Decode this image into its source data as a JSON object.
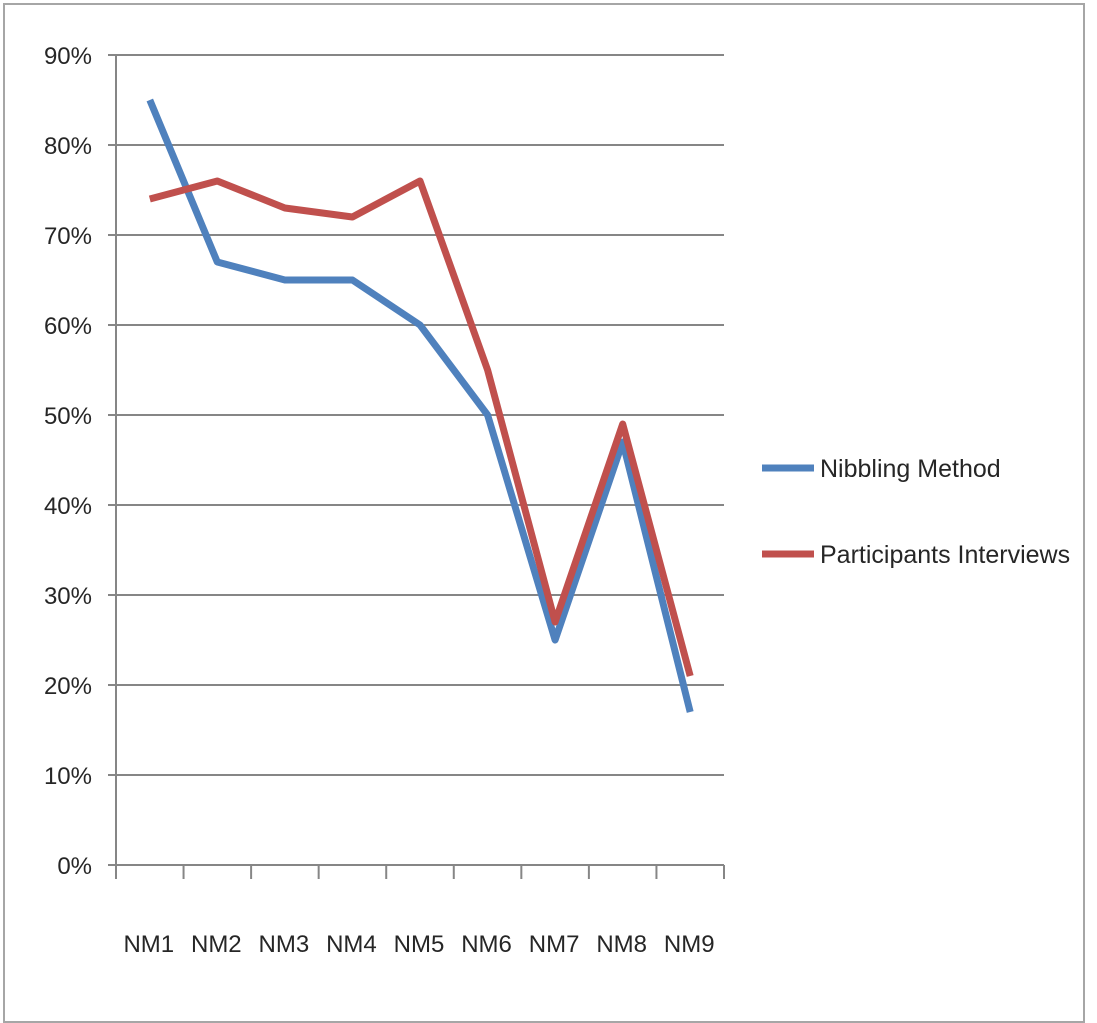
{
  "chart_data": {
    "type": "line",
    "categories": [
      "NM1",
      "NM2",
      "NM3",
      "NM4",
      "NM5",
      "NM6",
      "NM7",
      "NM8",
      "NM9"
    ],
    "y_ticks": [
      "0%",
      "10%",
      "20%",
      "30%",
      "40%",
      "50%",
      "60%",
      "70%",
      "80%",
      "90%"
    ],
    "ylim": [
      0,
      90
    ],
    "y_unit": "%",
    "grid": true,
    "legend_position": "right",
    "series": [
      {
        "name": "Nibbling Method",
        "color": "#4f81bd",
        "values": [
          85,
          67,
          65,
          65,
          60,
          50,
          25,
          47,
          17
        ]
      },
      {
        "name": "Participants Interviews",
        "color": "#c0504d",
        "values": [
          74,
          76,
          73,
          72,
          76,
          55,
          27,
          49,
          21
        ]
      }
    ]
  }
}
